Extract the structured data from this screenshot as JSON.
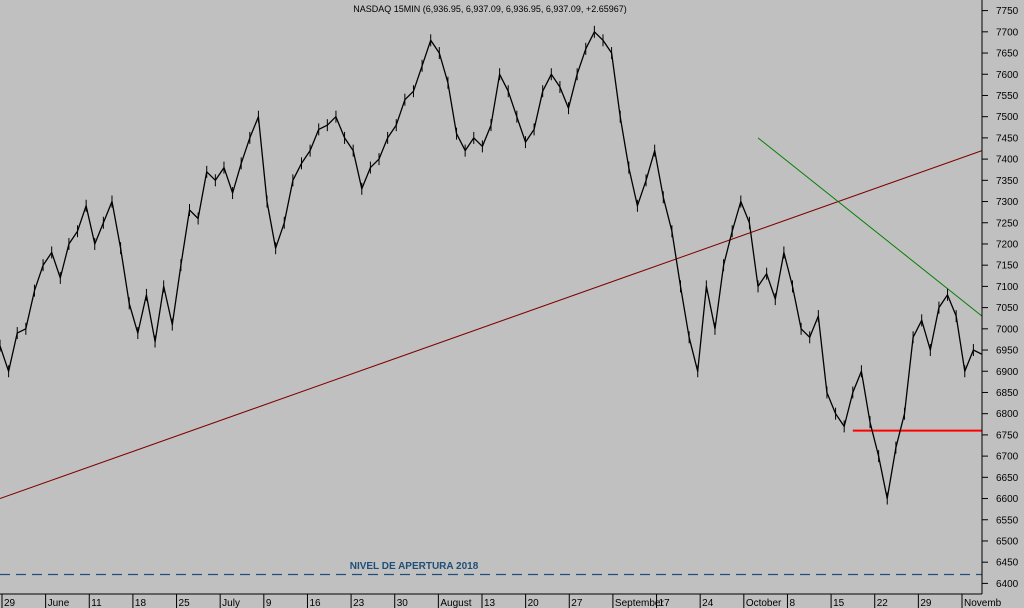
{
  "chart_data": {
    "type": "line",
    "title": "NASDAQ 15MIN (6,936.95, 6,937.09, 6,936.95, 6,937.09, +2.65967)",
    "ylim": [
      6375,
      7775
    ],
    "y_ticks": [
      6400,
      6450,
      6500,
      6550,
      6600,
      6650,
      6700,
      6750,
      6800,
      6850,
      6900,
      6950,
      7000,
      7050,
      7100,
      7150,
      7200,
      7250,
      7300,
      7350,
      7400,
      7450,
      7500,
      7550,
      7600,
      7650,
      7700,
      7750
    ],
    "x_tick_labels": [
      "29",
      "June",
      "11",
      "18",
      "25",
      "July",
      "9",
      "16",
      "23",
      "30",
      "August",
      "13",
      "20",
      "27",
      "September",
      "17",
      "24",
      "October",
      "8",
      "15",
      "22",
      "29",
      "Novemb"
    ],
    "grid": false,
    "colors": {
      "background": "#c0c0c0",
      "price": "#000000",
      "long_trendline": "#800000",
      "down_trendline": "#008000",
      "support_line": "#ff0000",
      "opening_level": "#1f4e79"
    },
    "series": [
      {
        "x": [
          0,
          1,
          2,
          3,
          4,
          5,
          6,
          7,
          8,
          9,
          10,
          11,
          12,
          13,
          14,
          15,
          16,
          17,
          18,
          19,
          20,
          21,
          22,
          23,
          24,
          25,
          26,
          27,
          28,
          29,
          30,
          31,
          32,
          33,
          34,
          35,
          36,
          37,
          38,
          39,
          40,
          41,
          42,
          43,
          44,
          45,
          46,
          47,
          48,
          49,
          50,
          51,
          52,
          53,
          54,
          55,
          56,
          57,
          58,
          59,
          60,
          61,
          62,
          63,
          64,
          65,
          66,
          67,
          68,
          69,
          70,
          71,
          72,
          73,
          74,
          75,
          76,
          77,
          78,
          79,
          80,
          81,
          82,
          83,
          84,
          85,
          86,
          87,
          88,
          89,
          90,
          91,
          92,
          93,
          94,
          95,
          96,
          97,
          98,
          99,
          100,
          101,
          102,
          103,
          104,
          105,
          106,
          107,
          108,
          109,
          110,
          111,
          112,
          113,
          114
        ],
        "values": [
          6960,
          6900,
          6990,
          7000,
          7090,
          7150,
          7180,
          7120,
          7200,
          7230,
          7290,
          7200,
          7250,
          7300,
          7190,
          7060,
          6990,
          7080,
          6970,
          7100,
          7010,
          7150,
          7280,
          7260,
          7370,
          7350,
          7380,
          7320,
          7390,
          7450,
          7500,
          7300,
          7190,
          7250,
          7350,
          7390,
          7420,
          7470,
          7480,
          7500,
          7450,
          7420,
          7330,
          7380,
          7400,
          7450,
          7480,
          7540,
          7560,
          7620,
          7680,
          7650,
          7580,
          7460,
          7420,
          7450,
          7430,
          7480,
          7600,
          7560,
          7500,
          7440,
          7470,
          7560,
          7600,
          7570,
          7520,
          7600,
          7660,
          7700,
          7680,
          7650,
          7500,
          7380,
          7290,
          7350,
          7420,
          7310,
          7230,
          7100,
          6980,
          6900,
          7100,
          7000,
          7150,
          7230,
          7300,
          7250,
          7100,
          7130,
          7070,
          7180,
          7100,
          7000,
          6980,
          7030,
          6850,
          6800,
          6770,
          6850,
          6900,
          6780,
          6700,
          6600,
          6720,
          6800,
          6980,
          7020,
          6950,
          7050,
          7080,
          7030,
          6900,
          6950,
          6940
        ]
      }
    ],
    "trendlines": [
      {
        "name": "long-trendline",
        "x": [
          0,
          114
        ],
        "y": [
          6600,
          7420
        ]
      },
      {
        "name": "down-trendline",
        "x": [
          88,
          114
        ],
        "y": [
          7450,
          7030
        ]
      },
      {
        "name": "support-line",
        "x": [
          99,
          114
        ],
        "y": [
          6760,
          6760
        ]
      },
      {
        "name": "opening-level-line",
        "x": [
          0,
          114
        ],
        "y": [
          6421,
          6421
        ]
      }
    ],
    "annotation": "NIVEL DE APERTURA 2018"
  }
}
